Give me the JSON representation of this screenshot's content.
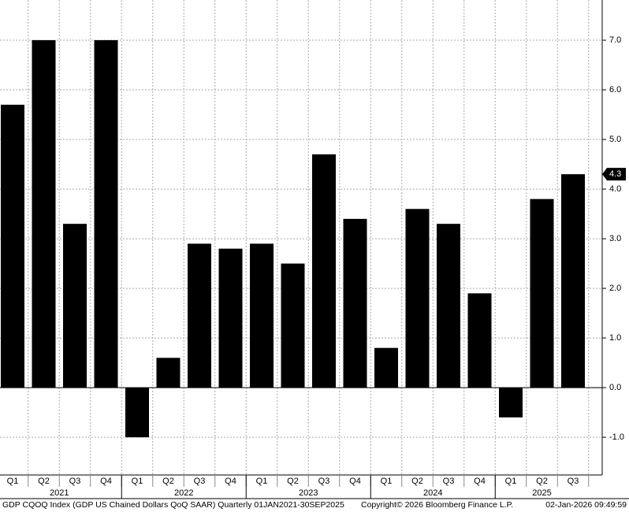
{
  "chart_data": {
    "type": "bar",
    "color": "#000000",
    "groups": [
      {
        "name": "2021",
        "categories": [
          "Q1",
          "Q2",
          "Q3",
          "Q4"
        ]
      },
      {
        "name": "2022",
        "categories": [
          "Q1",
          "Q2",
          "Q3",
          "Q4"
        ]
      },
      {
        "name": "2023",
        "categories": [
          "Q1",
          "Q2",
          "Q3",
          "Q4"
        ]
      },
      {
        "name": "2024",
        "categories": [
          "Q1",
          "Q2",
          "Q3",
          "Q4"
        ]
      },
      {
        "name": "2025",
        "categories": [
          "Q1",
          "Q2",
          "Q3"
        ]
      }
    ],
    "values": [
      5.7,
      7.0,
      3.3,
      7.0,
      -1.0,
      0.6,
      2.9,
      2.8,
      2.9,
      2.5,
      4.7,
      3.4,
      0.8,
      3.6,
      3.3,
      1.9,
      -0.6,
      3.8,
      4.3
    ],
    "ylim": [
      -1.76,
      7.81
    ],
    "yticks": [
      {
        "value": -1,
        "label": "-1.0"
      },
      {
        "value": 0,
        "label": "0.0"
      },
      {
        "value": 1,
        "label": "1.0"
      },
      {
        "value": 2,
        "label": "2.0"
      },
      {
        "value": 3,
        "label": "3.0"
      },
      {
        "value": 4,
        "label": "4.0"
      },
      {
        "value": 5,
        "label": "5.0"
      },
      {
        "value": 6,
        "label": "6.0"
      },
      {
        "value": 7,
        "label": "7.0"
      }
    ],
    "grid": true,
    "footer": {
      "description": "GDP CQOQ Index (GDP US Chained Dollars QoQ SAAR) Quarterly 01JAN2021-30SEP2025",
      "copyright": "Copyright© 2026 Bloomberg Finance L.P.",
      "timestamp": "02-Jan-2026 09:49:59"
    }
  }
}
